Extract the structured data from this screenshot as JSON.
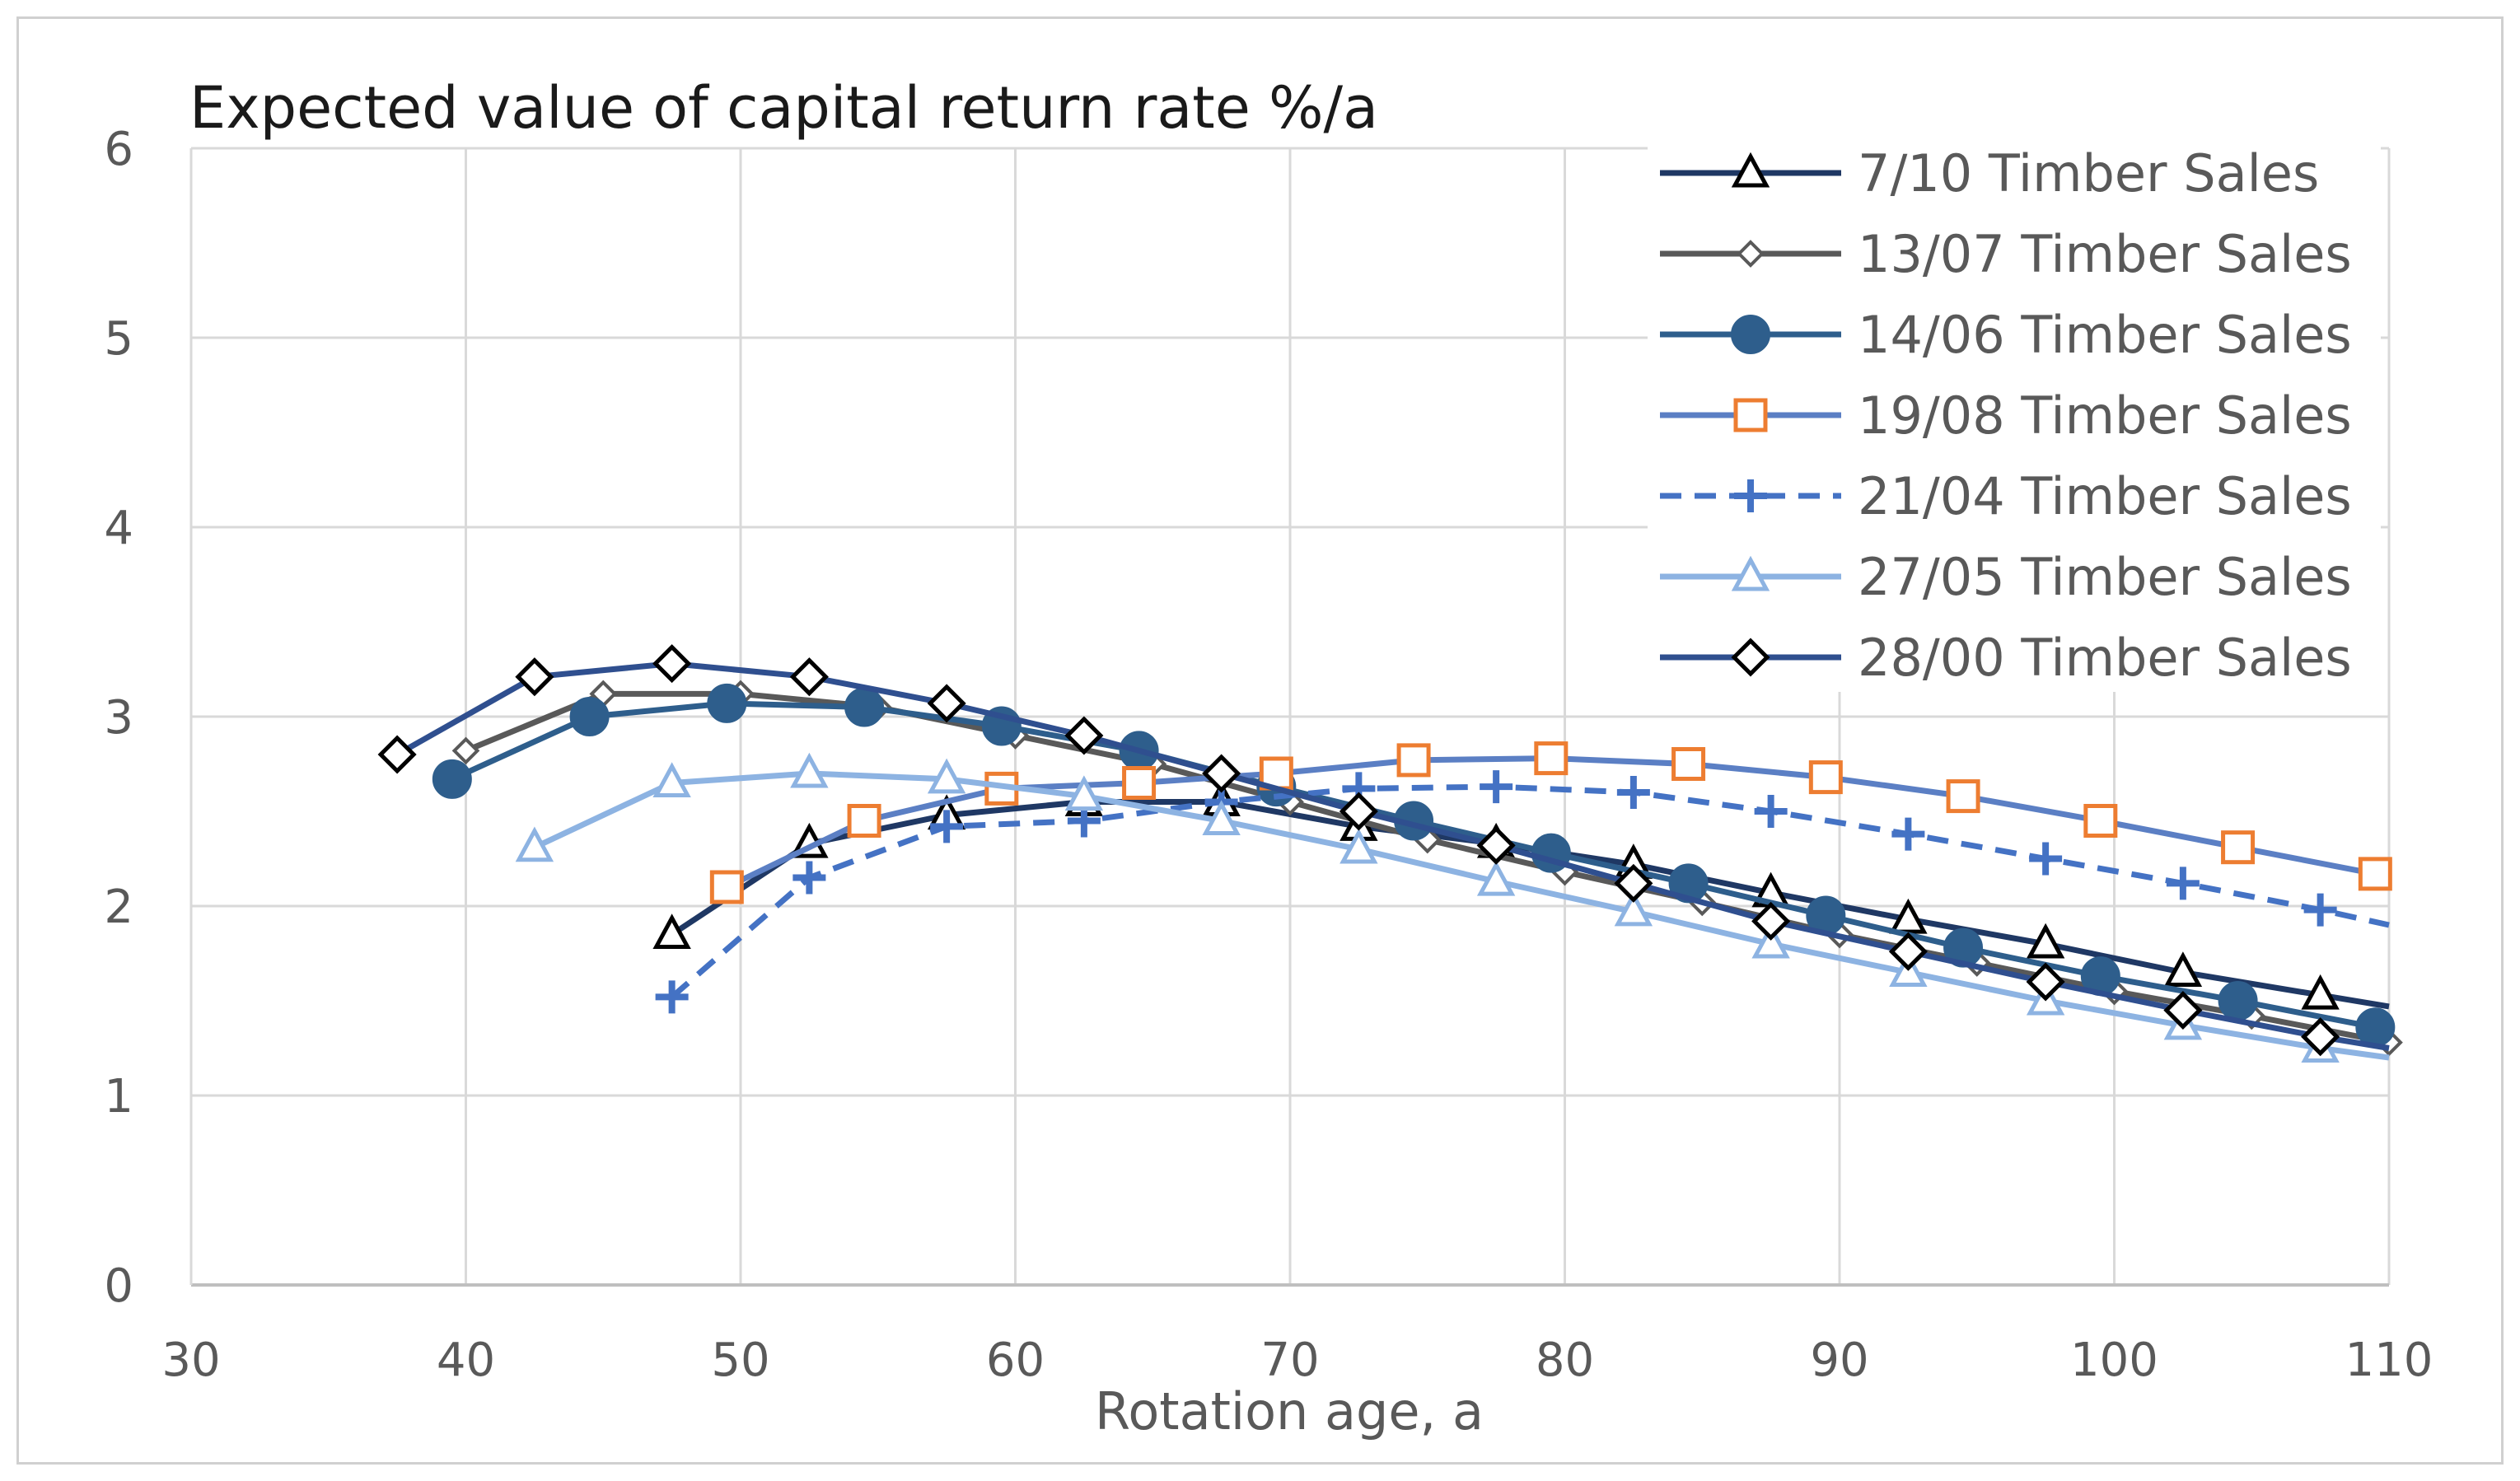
{
  "chart_data": {
    "type": "line",
    "title": "Expected value of capital return rate  %/a",
    "xlabel": "Rotation age, a",
    "ylabel": "",
    "xlim": [
      30,
      110
    ],
    "ylim": [
      0,
      6
    ],
    "x_ticks": [
      "30",
      "40",
      "50",
      "60",
      "70",
      "80",
      "90",
      "100",
      "110"
    ],
    "y_ticks": [
      "0",
      "1",
      "2",
      "3",
      "4",
      "5",
      "6"
    ],
    "grid": true,
    "legend": "top-right",
    "series": [
      {
        "name": "7/10 Timber Sales",
        "color": "#1f3864",
        "dash": "solid",
        "marker": "triangle-open",
        "x": [
          47.5,
          52.5,
          57.5,
          62.5,
          67.5,
          72.5,
          77.5,
          82.5,
          87.5,
          92.5,
          97.5,
          102.5,
          107.5,
          110
        ],
        "y": [
          1.85,
          2.33,
          2.48,
          2.55,
          2.55,
          2.42,
          2.33,
          2.22,
          2.07,
          1.93,
          1.8,
          1.65,
          1.53,
          1.47
        ]
      },
      {
        "name": "13/07 Timber Sales",
        "color": "#595959",
        "dash": "solid",
        "marker": "diamond-small",
        "x": [
          40,
          45,
          50,
          55,
          60,
          65,
          70,
          75,
          80,
          85,
          90,
          95,
          100,
          105,
          110
        ],
        "y": [
          2.82,
          3.12,
          3.12,
          3.05,
          2.9,
          2.75,
          2.55,
          2.35,
          2.18,
          2.02,
          1.85,
          1.7,
          1.55,
          1.42,
          1.28
        ]
      },
      {
        "name": "14/06 Timber Sales",
        "color": "#2e5e8c",
        "dash": "solid",
        "marker": "circle-filled",
        "x": [
          39.5,
          44.5,
          49.5,
          54.5,
          59.5,
          64.5,
          69.5,
          74.5,
          79.5,
          84.5,
          89.5,
          94.5,
          99.5,
          104.5,
          109.5
        ],
        "y": [
          2.67,
          3.0,
          3.07,
          3.05,
          2.95,
          2.82,
          2.63,
          2.45,
          2.28,
          2.12,
          1.95,
          1.78,
          1.63,
          1.5,
          1.36
        ]
      },
      {
        "name": "19/08 Timber Sales",
        "color": "#5b7fc4",
        "dash": "solid",
        "marker": "square-open",
        "x": [
          49.5,
          54.5,
          59.5,
          64.5,
          69.5,
          74.5,
          79.5,
          84.5,
          89.5,
          94.5,
          99.5,
          104.5,
          109.5
        ],
        "y": [
          2.1,
          2.45,
          2.62,
          2.65,
          2.7,
          2.77,
          2.78,
          2.75,
          2.68,
          2.58,
          2.45,
          2.31,
          2.17
        ]
      },
      {
        "name": "21/04 Timber Sales",
        "color": "#4472c4",
        "dash": "dashed",
        "marker": "plus",
        "x": [
          47.5,
          52.5,
          57.5,
          62.5,
          67.5,
          72.5,
          77.5,
          82.5,
          87.5,
          92.5,
          97.5,
          102.5,
          107.5,
          110
        ],
        "y": [
          1.52,
          2.15,
          2.42,
          2.45,
          2.55,
          2.62,
          2.63,
          2.6,
          2.5,
          2.38,
          2.25,
          2.12,
          1.98,
          1.9
        ]
      },
      {
        "name": "27/05 Timber Sales",
        "color": "#8db3e2",
        "dash": "solid",
        "marker": "triangle-open",
        "x": [
          42.5,
          47.5,
          52.5,
          57.5,
          62.5,
          67.5,
          72.5,
          77.5,
          82.5,
          87.5,
          92.5,
          97.5,
          102.5,
          107.5,
          110
        ],
        "y": [
          2.31,
          2.65,
          2.7,
          2.67,
          2.58,
          2.45,
          2.3,
          2.13,
          1.97,
          1.8,
          1.65,
          1.5,
          1.37,
          1.25,
          1.2
        ]
      },
      {
        "name": "28/00 Timber Sales",
        "color": "#2f4f8f",
        "dash": "solid",
        "marker": "diamond-open",
        "x": [
          37.5,
          42.5,
          47.5,
          52.5,
          57.5,
          62.5,
          67.5,
          72.5,
          77.5,
          82.5,
          87.5,
          92.5,
          97.5,
          102.5,
          107.5,
          110
        ],
        "y": [
          2.8,
          3.21,
          3.28,
          3.21,
          3.07,
          2.9,
          2.7,
          2.5,
          2.32,
          2.12,
          1.92,
          1.76,
          1.6,
          1.45,
          1.31,
          1.25
        ]
      }
    ]
  }
}
